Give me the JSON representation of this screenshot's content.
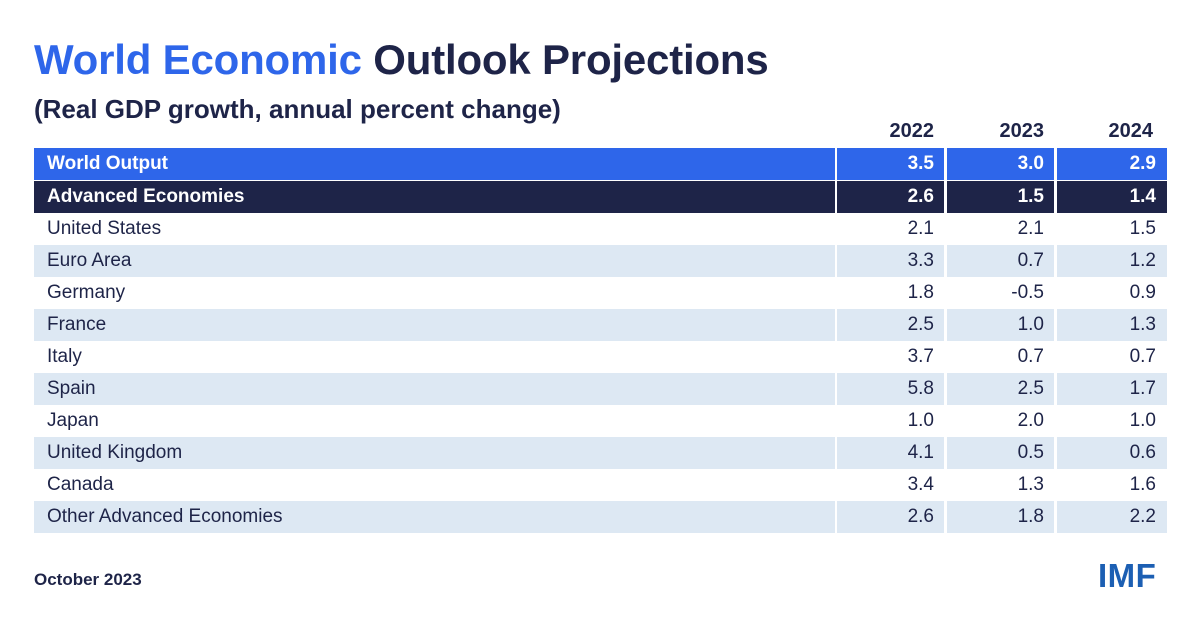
{
  "title_accent": "World Economic",
  "title_rest": "Outlook Projections",
  "subtitle": "(Real GDP growth, annual percent change)",
  "footer_date": "October 2023",
  "logo_text": "IMF",
  "colors": {
    "accent_blue": "#2e66ea",
    "navy": "#1e2448",
    "row_alt": "#dde8f3",
    "logo_blue": "#1c5fb3"
  },
  "chart_data": {
    "type": "table",
    "title": "World Economic Outlook Projections",
    "subtitle": "(Real GDP growth, annual percent change)",
    "columns": [
      "2022",
      "2023",
      "2024"
    ],
    "rows": [
      {
        "name": "World Output",
        "values": [
          "3.5",
          "3.0",
          "2.9"
        ],
        "style": "world"
      },
      {
        "name": "Advanced Economies",
        "values": [
          "2.6",
          "1.5",
          "1.4"
        ],
        "style": "adv"
      },
      {
        "name": "United States",
        "values": [
          "2.1",
          "2.1",
          "1.5"
        ],
        "style": "plain"
      },
      {
        "name": "Euro Area",
        "values": [
          "3.3",
          "0.7",
          "1.2"
        ],
        "style": "alt"
      },
      {
        "name": "Germany",
        "values": [
          "1.8",
          "-0.5",
          "0.9"
        ],
        "style": "plain"
      },
      {
        "name": "France",
        "values": [
          "2.5",
          "1.0",
          "1.3"
        ],
        "style": "alt"
      },
      {
        "name": "Italy",
        "values": [
          "3.7",
          "0.7",
          "0.7"
        ],
        "style": "plain"
      },
      {
        "name": "Spain",
        "values": [
          "5.8",
          "2.5",
          "1.7"
        ],
        "style": "alt"
      },
      {
        "name": "Japan",
        "values": [
          "1.0",
          "2.0",
          "1.0"
        ],
        "style": "plain"
      },
      {
        "name": "United Kingdom",
        "values": [
          "4.1",
          "0.5",
          "0.6"
        ],
        "style": "alt"
      },
      {
        "name": "Canada",
        "values": [
          "3.4",
          "1.3",
          "1.6"
        ],
        "style": "plain"
      },
      {
        "name": "Other Advanced Economies",
        "values": [
          "2.6",
          "1.8",
          "2.2"
        ],
        "style": "alt"
      }
    ]
  }
}
